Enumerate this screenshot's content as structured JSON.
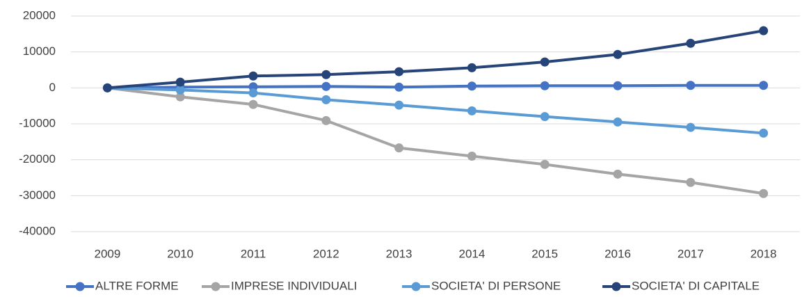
{
  "chart_data": {
    "type": "line",
    "categories": [
      "2009",
      "2010",
      "2011",
      "2012",
      "2013",
      "2014",
      "2015",
      "2016",
      "2017",
      "2018"
    ],
    "series": [
      {
        "name": "ALTRE FORME",
        "color": "#4472c4",
        "values": [
          0,
          200,
          300,
          400,
          200,
          500,
          600,
          600,
          700,
          700
        ]
      },
      {
        "name": "IMPRESE INDIVIDUALI",
        "color": "#a5a5a5",
        "values": [
          0,
          -2500,
          -4600,
          -9100,
          -16700,
          -19000,
          -21300,
          -24000,
          -26300,
          -29400
        ]
      },
      {
        "name": "SOCIETA' DI PERSONE",
        "color": "#5b9bd5",
        "values": [
          0,
          -600,
          -1400,
          -3300,
          -4800,
          -6400,
          -8000,
          -9500,
          -11000,
          -12600
        ]
      },
      {
        "name": "SOCIETA' DI CAPITALE",
        "color": "#264478",
        "values": [
          0,
          1600,
          3300,
          3700,
          4500,
          5600,
          7200,
          9300,
          12400,
          15900
        ]
      }
    ],
    "ylim": [
      -40000,
      20000
    ],
    "yticks": [
      -40000,
      -30000,
      -20000,
      -10000,
      0,
      10000,
      20000
    ],
    "grid": true,
    "legend": "bottom"
  }
}
